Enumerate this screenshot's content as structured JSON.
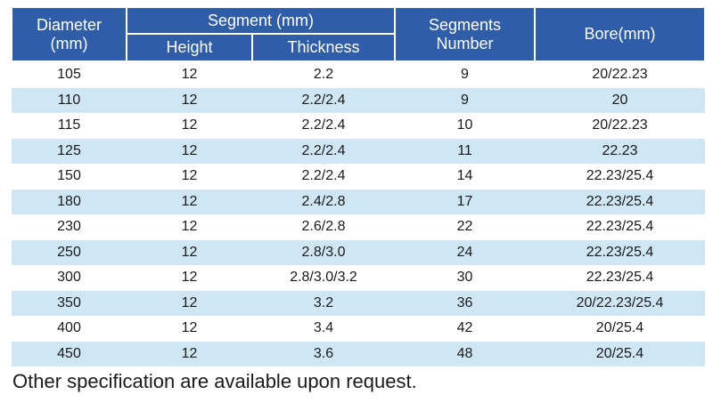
{
  "table": {
    "headers": {
      "diameter_line1": "Diameter",
      "diameter_line2": "(mm)",
      "segment": "Segment (mm)",
      "height": "Height",
      "thickness": "Thickness",
      "segments_line1": "Segments",
      "segments_line2": "Number",
      "bore": "Bore(mm)"
    },
    "rows": [
      {
        "diameter": "105",
        "height": "12",
        "thickness": "2.2",
        "segments": "9",
        "bore": "20/22.23"
      },
      {
        "diameter": "110",
        "height": "12",
        "thickness": "2.2/2.4",
        "segments": "9",
        "bore": "20"
      },
      {
        "diameter": "115",
        "height": "12",
        "thickness": "2.2/2.4",
        "segments": "10",
        "bore": "20/22.23"
      },
      {
        "diameter": "125",
        "height": "12",
        "thickness": "2.2/2.4",
        "segments": "11",
        "bore": "22.23"
      },
      {
        "diameter": "150",
        "height": "12",
        "thickness": "2.2/2.4",
        "segments": "14",
        "bore": "22.23/25.4"
      },
      {
        "diameter": "180",
        "height": "12",
        "thickness": "2.4/2.8",
        "segments": "17",
        "bore": "22.23/25.4"
      },
      {
        "diameter": "230",
        "height": "12",
        "thickness": "2.6/2.8",
        "segments": "22",
        "bore": "22.23/25.4"
      },
      {
        "diameter": "250",
        "height": "12",
        "thickness": "2.8/3.0",
        "segments": "24",
        "bore": "22.23/25.4"
      },
      {
        "diameter": "300",
        "height": "12",
        "thickness": "2.8/3.0/3.2",
        "segments": "30",
        "bore": "22.23/25.4"
      },
      {
        "diameter": "350",
        "height": "12",
        "thickness": "3.2",
        "segments": "36",
        "bore": "20/22.23/25.4"
      },
      {
        "diameter": "400",
        "height": "12",
        "thickness": "3.4",
        "segments": "42",
        "bore": "20/25.4"
      },
      {
        "diameter": "450",
        "height": "12",
        "thickness": "3.6",
        "segments": "48",
        "bore": "20/25.4"
      }
    ]
  },
  "note": "Other specification are available upon request.",
  "colors": {
    "header_bg": "#2f5da8",
    "header_text": "#ffffff",
    "stripe_bg": "#cfe6f5"
  }
}
